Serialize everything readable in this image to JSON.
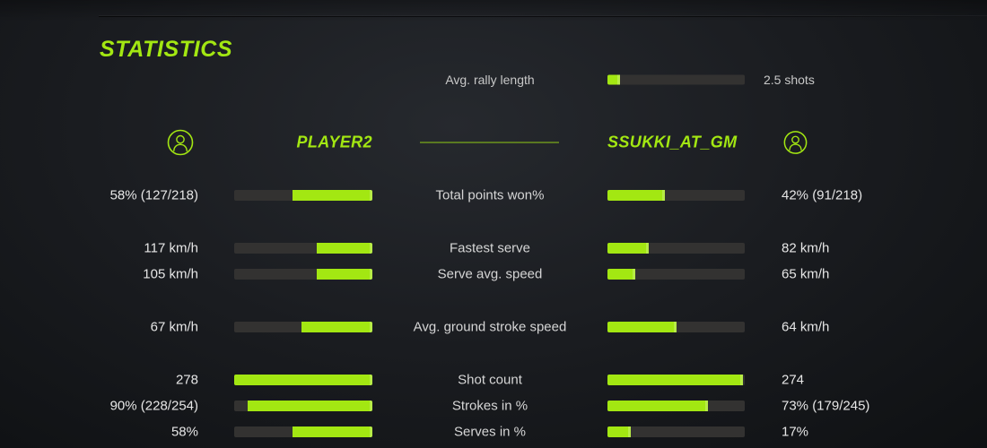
{
  "colors": {
    "accent": "#a3e712",
    "bar_background": "#333231"
  },
  "title": "STATISTICS",
  "rally": {
    "label": "Avg. rally length",
    "value": "2.5 shots",
    "fill_pct": 9
  },
  "players": {
    "left": {
      "name": "PLAYER2",
      "icon": "person-circle-icon"
    },
    "right": {
      "name": "SSUKKI_AT_GM",
      "icon": "person-circle-icon"
    }
  },
  "stats": {
    "rows": [
      {
        "label": "Total points won%",
        "left_value": "58% (127/218)",
        "right_value": "42% (91/218)",
        "left_fill_pct": 58,
        "right_fill_pct": 42
      },
      {
        "label": "Fastest serve",
        "left_value": "117 km/h",
        "right_value": "82 km/h",
        "left_fill_pct": 40,
        "right_fill_pct": 30
      },
      {
        "label": "Serve avg. speed",
        "left_value": "105 km/h",
        "right_value": "65 km/h",
        "left_fill_pct": 40,
        "right_fill_pct": 20
      },
      {
        "label": "Avg. ground stroke speed",
        "left_value": "67 km/h",
        "right_value": "64 km/h",
        "left_fill_pct": 51,
        "right_fill_pct": 50
      },
      {
        "label": "Shot count",
        "left_value": "278",
        "right_value": "274",
        "left_fill_pct": 100,
        "right_fill_pct": 98.5
      },
      {
        "label": "Strokes in %",
        "left_value": "90% (228/254)",
        "right_value": "73% (179/245)",
        "left_fill_pct": 90,
        "right_fill_pct": 73
      },
      {
        "label": "Serves in %",
        "left_value": "58%",
        "right_value": "17%",
        "left_fill_pct": 58,
        "right_fill_pct": 17
      }
    ]
  }
}
